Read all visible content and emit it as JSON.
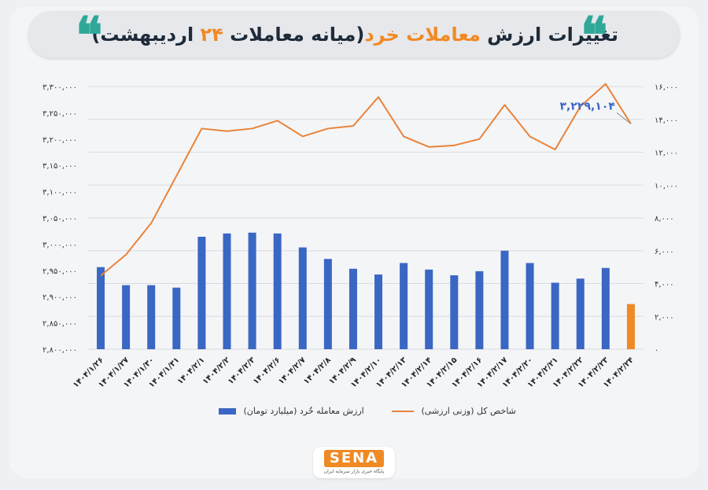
{
  "header": {
    "title_part1": "تغییرات ارزش ",
    "title_part2": "معاملات خرد",
    "title_part3": "(میانه معاملات ",
    "title_part4": "۲۴",
    "title_part5": " اردیبهشت)",
    "quote_mark": "❝"
  },
  "colors": {
    "bar": "#3a66c4",
    "bar_highlight": "#f08a24",
    "line": "#e8833a",
    "accent": "#f08a24",
    "quote": "#2fa89a"
  },
  "logo": {
    "word": "SENA",
    "sub": "پایگاه خبری بازار سرمایه ایران"
  },
  "chart_data": {
    "type": "bar",
    "categories": [
      "۱۴۰۴/۱/۲۶",
      "۱۴۰۴/۱/۲۷",
      "۱۴۰۴/۱/۳۰",
      "۱۴۰۴/۱/۳۱",
      "۱۴۰۴/۲/۱",
      "۱۴۰۴/۲/۲",
      "۱۴۰۴/۲/۳",
      "۱۴۰۴/۲/۶",
      "۱۴۰۴/۲/۷",
      "۱۴۰۴/۲/۸",
      "۱۴۰۴/۲/۹",
      "۱۴۰۴/۲/۱۰",
      "۱۴۰۴/۲/۱۳",
      "۱۴۰۴/۲/۱۴",
      "۱۴۰۴/۲/۱۵",
      "۱۴۰۴/۲/۱۶",
      "۱۴۰۴/۲/۱۷",
      "۱۴۰۴/۲/۲۰",
      "۱۴۰۴/۲/۲۱",
      "۱۴۰۴/۲/۲۲",
      "۱۴۰۴/۲/۲۳",
      "۱۴۰۴/۲/۲۴"
    ],
    "series": [
      {
        "name": "ارزش معامله خُرد (میلیارد تومان)",
        "type": "bar",
        "axis": "left",
        "values": [
          5000,
          3900,
          3900,
          3750,
          6850,
          7050,
          7100,
          7050,
          6200,
          5500,
          4900,
          4550,
          5250,
          4850,
          4500,
          4750,
          6000,
          5250,
          4050,
          4300,
          4950,
          2750
        ]
      },
      {
        "name": "شاخص کل (وزنی ارزشی)",
        "type": "line",
        "axis": "right",
        "values": [
          2940000,
          2980000,
          3040000,
          3130000,
          3220000,
          3215000,
          3220000,
          3235000,
          3205000,
          3220000,
          3225000,
          3280000,
          3205000,
          3185000,
          3188000,
          3200000,
          3265000,
          3205000,
          3180000,
          3262000,
          3305000,
          3229104
        ]
      }
    ],
    "left_axis": {
      "min": 0,
      "max": 16000,
      "step": 2000,
      "ticks": [
        "۰",
        "۲,۰۰۰",
        "۴,۰۰۰",
        "۶,۰۰۰",
        "۸,۰۰۰",
        "۱۰,۰۰۰",
        "۱۲,۰۰۰",
        "۱۴,۰۰۰",
        "۱۶,۰۰۰"
      ]
    },
    "right_axis": {
      "min": 2800000,
      "max": 3300000,
      "step": 50000,
      "ticks": [
        "۲,۸۰۰,۰۰۰",
        "۲,۸۵۰,۰۰۰",
        "۲,۹۰۰,۰۰۰",
        "۲,۹۵۰,۰۰۰",
        "۳,۰۰۰,۰۰۰",
        "۳,۰۵۰,۰۰۰",
        "۳,۱۰۰,۰۰۰",
        "۳,۱۵۰,۰۰۰",
        "۳,۲۰۰,۰۰۰",
        "۳,۲۵۰,۰۰۰",
        "۳,۳۰۰,۰۰۰"
      ]
    },
    "annotation": {
      "text": "۳,۲۲۹,۱۰۴",
      "index": 21
    },
    "grid": true,
    "legend_position": "bottom"
  }
}
